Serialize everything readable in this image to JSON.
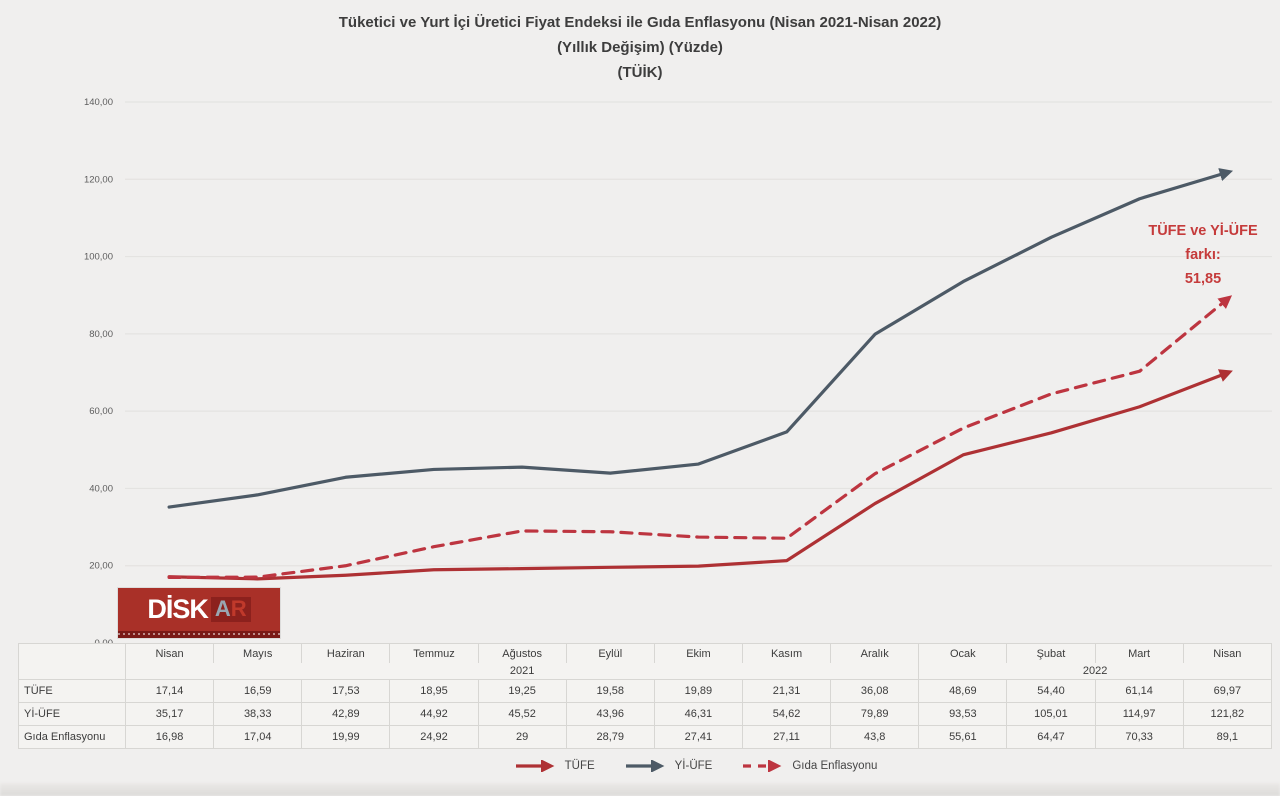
{
  "title": {
    "line1": "Tüketici ve Yurt İçi Üretici Fiyat Endeksi ile Gıda Enflasyonu (Nisan 2021-Nisan 2022)",
    "line2": "(Yıllık Değişim) (Yüzde)",
    "line3": "(TÜİK)"
  },
  "annotation": {
    "line1": "TÜFE ve Yİ-ÜFE",
    "line2": "farkı:",
    "line3": "51,85",
    "color": "#c53b3b"
  },
  "logo": {
    "brand": "DİSK",
    "suffix_a": "A",
    "suffix_r": "R"
  },
  "chart_data": {
    "type": "line",
    "title": "Tüketici ve Yurt İçi Üretici Fiyat Endeksi ile Gıda Enflasyonu (Nisan 2021-Nisan 2022) (Yıllık Değişim) (Yüzde) (TÜİK)",
    "categories": [
      "Nisan",
      "Mayıs",
      "Haziran",
      "Temmuz",
      "Ağustos",
      "Eylül",
      "Ekim",
      "Kasım",
      "Aralık",
      "Ocak",
      "Şubat",
      "Mart",
      "Nisan"
    ],
    "x_year_groups": [
      {
        "label": "2021",
        "span": 9
      },
      {
        "label": "2022",
        "span": 4
      }
    ],
    "series": [
      {
        "name": "TÜFE",
        "slug": "tufe",
        "style": "solid",
        "color": "#ae3134",
        "values": [
          17.14,
          16.59,
          17.53,
          18.95,
          19.25,
          19.58,
          19.89,
          21.31,
          36.08,
          48.69,
          54.4,
          61.14,
          69.97
        ]
      },
      {
        "name": "Yİ-ÜFE",
        "slug": "yi-ufe",
        "style": "solid",
        "color": "#4d5a66",
        "values": [
          35.17,
          38.33,
          42.89,
          44.92,
          45.52,
          43.96,
          46.31,
          54.62,
          79.89,
          93.53,
          105.01,
          114.97,
          121.82
        ]
      },
      {
        "name": "Gıda Enflasyonu",
        "slug": "gida-enflasyonu",
        "style": "dashed",
        "color": "#bd3540",
        "values": [
          16.98,
          17.04,
          19.99,
          24.92,
          29,
          28.79,
          27.41,
          27.11,
          43.8,
          55.61,
          64.47,
          70.33,
          89.1
        ]
      }
    ],
    "ylim": [
      0,
      140
    ],
    "y_ticks": [
      "0,00",
      "20,00",
      "40,00",
      "60,00",
      "80,00",
      "100,00",
      "120,00",
      "140,00"
    ],
    "grid": true,
    "legend_position": "bottom"
  },
  "table": {
    "columns": [
      "Nisan",
      "Mayıs",
      "Haziran",
      "Temmuz",
      "Ağustos",
      "Eylül",
      "Ekim",
      "Kasım",
      "Aralık",
      "Ocak",
      "Şubat",
      "Mart",
      "Nisan"
    ],
    "year_row": [
      {
        "label": "2021",
        "span": 9
      },
      {
        "label": "2022",
        "span": 4
      }
    ],
    "rows": [
      {
        "label": "TÜFE",
        "values": [
          "17,14",
          "16,59",
          "17,53",
          "18,95",
          "19,25",
          "19,58",
          "19,89",
          "21,31",
          "36,08",
          "48,69",
          "54,40",
          "61,14",
          "69,97"
        ]
      },
      {
        "label": "Yİ-ÜFE",
        "values": [
          "35,17",
          "38,33",
          "42,89",
          "44,92",
          "45,52",
          "43,96",
          "46,31",
          "54,62",
          "79,89",
          "93,53",
          "105,01",
          "114,97",
          "121,82"
        ]
      },
      {
        "label": "Gıda Enflasyonu",
        "values": [
          "16,98",
          "17,04",
          "19,99",
          "24,92",
          "29",
          "28,79",
          "27,41",
          "27,11",
          "43,8",
          "55,61",
          "64,47",
          "70,33",
          "89,1"
        ]
      }
    ]
  }
}
